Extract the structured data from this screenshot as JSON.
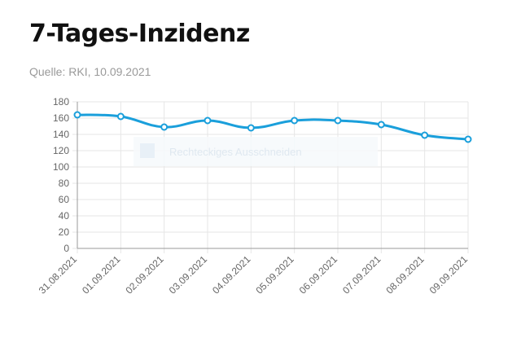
{
  "header": {
    "title": "7-Tages-Inzidenz",
    "source": "Quelle: RKI, 10.09.2021"
  },
  "overlay": {
    "label": "Rechteckiges Ausschneiden"
  },
  "colors": {
    "line": "#1a9fdb",
    "grid": "#e6e6e6",
    "axis": "#999999",
    "title": "#111111",
    "source": "#9a9a9a",
    "tick_text": "#666666"
  },
  "chart_data": {
    "type": "line",
    "title": "7-Tages-Inzidenz",
    "xlabel": "",
    "ylabel": "",
    "categories": [
      "31.08.2021",
      "01.09.2021",
      "02.09.2021",
      "03.09.2021",
      "04.09.2021",
      "05.09.2021",
      "06.09.2021",
      "07.09.2021",
      "08.09.2021",
      "09.09.2021"
    ],
    "series": [
      {
        "values": [
          164,
          162,
          149,
          157,
          148,
          157,
          157,
          152,
          139,
          134
        ]
      }
    ],
    "ylim": [
      0,
      180
    ],
    "yticks": [
      0,
      20,
      40,
      60,
      80,
      100,
      120,
      140,
      160,
      180
    ],
    "grid": true,
    "legend": "none",
    "smooth": true,
    "markers": "hollow-circle"
  }
}
